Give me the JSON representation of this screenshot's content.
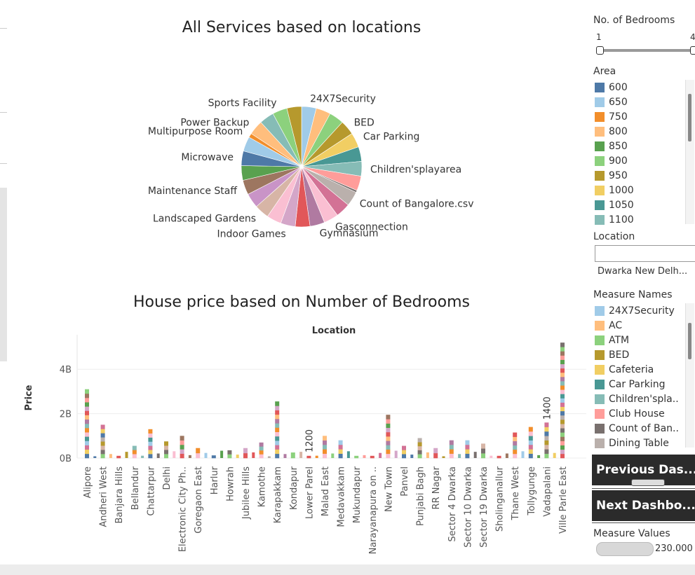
{
  "pie_chart": {
    "title": "All Services based on locations"
  },
  "bar_chart": {
    "title": "House price based on Number of Bedrooms",
    "column_header": "Location",
    "ylabel": "Price",
    "yticks": [
      "0B",
      "2B",
      "4B"
    ]
  },
  "chart_data": [
    {
      "type": "pie",
      "title": "All Services based on locations",
      "slices": [
        {
          "label": "24X7Security",
          "value": 4.2,
          "color": "#a0cbe8"
        },
        {
          "label": "",
          "value": 4.2,
          "color": "#ffbe7d"
        },
        {
          "label": "",
          "value": 4.2,
          "color": "#8cd17d"
        },
        {
          "label": "BED",
          "value": 4.2,
          "color": "#b6992d"
        },
        {
          "label": "Car Parking",
          "value": 4.2,
          "color": "#f1ce63"
        },
        {
          "label": "",
          "value": 4.2,
          "color": "#499894"
        },
        {
          "label": "Children'splayarea",
          "value": 4.2,
          "color": "#86bcb6"
        },
        {
          "label": "",
          "value": 4.2,
          "color": "#ff9d9a"
        },
        {
          "label": "",
          "value": 0.6,
          "color": "#79706e"
        },
        {
          "label": "Count of Bangalore.csv",
          "value": 4.2,
          "color": "#bab0ac"
        },
        {
          "label": "",
          "value": 4.2,
          "color": "#d37295"
        },
        {
          "label": "Gasconnection",
          "value": 4.2,
          "color": "#fabfd2"
        },
        {
          "label": "Gymnasium",
          "value": 4.2,
          "color": "#b07aa1"
        },
        {
          "label": "",
          "value": 4.2,
          "color": "#e15759"
        },
        {
          "label": "Indoor Games",
          "value": 4.2,
          "color": "#d4a6c8"
        },
        {
          "label": "",
          "value": 4.2,
          "color": "#fabfd2"
        },
        {
          "label": "Landscaped Gardens",
          "value": 4.2,
          "color": "#d7b5a6"
        },
        {
          "label": "",
          "value": 4.2,
          "color": "#c994c7"
        },
        {
          "label": "Maintenance Staff",
          "value": 4.2,
          "color": "#9d7660"
        },
        {
          "label": "",
          "value": 4.2,
          "color": "#59a14f"
        },
        {
          "label": "Microwave",
          "value": 4.2,
          "color": "#4e79a7"
        },
        {
          "label": "",
          "value": 4.2,
          "color": "#a0cbe8"
        },
        {
          "label": "Multipurpose Room",
          "value": 1.2,
          "color": "#f28e2b"
        },
        {
          "label": "Power Backup",
          "value": 4.2,
          "color": "#ffbe7d"
        },
        {
          "label": "",
          "value": 4.2,
          "color": "#86bcb6"
        },
        {
          "label": "Sports Facility",
          "value": 4.2,
          "color": "#8cd17d"
        },
        {
          "label": "",
          "value": 4.2,
          "color": "#b6992d"
        }
      ]
    },
    {
      "type": "bar",
      "title": "House price based on Number of Bedrooms",
      "xlabel": "Location",
      "ylabel": "Price",
      "ylim": [
        0,
        5.3
      ],
      "yticks": [
        0,
        2,
        4
      ],
      "tick_categories": [
        "Alipore",
        "Andheri West",
        "Banjara Hills",
        "Bellandur",
        "Chattarpur",
        "Delhi",
        "Electronic City Ph..",
        "Goregaon East",
        "Harlur",
        "Howrah",
        "Jubilee Hills",
        "Kamothe",
        "Karapakkam",
        "Kondapur",
        "Lower Parel",
        "Malad East",
        "Medavakkam",
        "Mukundapur",
        "Narayanapura on ..",
        "New Town",
        "Panvel",
        "Punjabi Bagh",
        "RR Nagar",
        "Sector 4 Dwarka",
        "Sector 10 Dwarka",
        "Sector 19 Dwarka",
        "Sholinganallur",
        "Thane West",
        "Tollygunge",
        "Vadapalani",
        "Ville Parle East"
      ],
      "bars": [
        {
          "location": "Alipore",
          "value": 3.1
        },
        {
          "location": "Andheri West",
          "value": 1.5
        },
        {
          "location": "Banjara Hills",
          "value": 0.1
        },
        {
          "location": "Bellandur",
          "value": 0.55
        },
        {
          "location": "Chattarpur",
          "value": 1.3
        },
        {
          "location": "Delhi",
          "value": 0.75
        },
        {
          "location": "Electronic City Ph..",
          "value": 1.0
        },
        {
          "location": "Goregaon East",
          "value": 0.45
        },
        {
          "location": "Harlur",
          "value": 0.12
        },
        {
          "location": "Howrah",
          "value": 0.35
        },
        {
          "location": "Jubilee Hills",
          "value": 0.45
        },
        {
          "location": "Kamothe",
          "value": 0.7
        },
        {
          "location": "Karapakkam",
          "value": 2.55
        },
        {
          "location": "Kondapur",
          "value": 0.25
        },
        {
          "location": "Lower Parel",
          "value": 0.1
        },
        {
          "location": "Malad East",
          "value": 1.0
        },
        {
          "location": "Medavakkam",
          "value": 0.8
        },
        {
          "location": "Mukundapur",
          "value": 0.1
        },
        {
          "location": "Narayanapura on ..",
          "value": 0.1
        },
        {
          "location": "New Town",
          "value": 1.95
        },
        {
          "location": "Panvel",
          "value": 0.55
        },
        {
          "location": "Punjabi Bagh",
          "value": 0.9
        },
        {
          "location": "RR Nagar",
          "value": 0.45
        },
        {
          "location": "Sector 4 Dwarka",
          "value": 0.8
        },
        {
          "location": "Sector 10 Dwarka",
          "value": 0.8
        },
        {
          "location": "Sector 19 Dwarka",
          "value": 0.65
        },
        {
          "location": "Sholinganallur",
          "value": 0.1
        },
        {
          "location": "Thane West",
          "value": 1.15
        },
        {
          "location": "Tollygunge",
          "value": 1.4
        },
        {
          "location": "Vadapalani",
          "value": 1.6
        },
        {
          "location": "Ville Parle East",
          "value": 5.2
        }
      ],
      "annotations": [
        {
          "text": "1200",
          "location": "Lower Parel"
        },
        {
          "text": "1400",
          "location": "Vadapalani"
        }
      ]
    }
  ],
  "sidebar": {
    "bedrooms": {
      "title": "No. of Bedrooms",
      "min_label": "1",
      "max_label": "4",
      "low": 1,
      "high": 4
    },
    "area": {
      "title": "Area",
      "items": [
        {
          "label": "600",
          "color": "#4e79a7"
        },
        {
          "label": "650",
          "color": "#a0cbe8"
        },
        {
          "label": "750",
          "color": "#f28e2b"
        },
        {
          "label": "800",
          "color": "#ffbe7d"
        },
        {
          "label": "850",
          "color": "#59a14f"
        },
        {
          "label": "900",
          "color": "#8cd17d"
        },
        {
          "label": "950",
          "color": "#b6992d"
        },
        {
          "label": "1000",
          "color": "#f1ce63"
        },
        {
          "label": "1050",
          "color": "#499894"
        },
        {
          "label": "1100",
          "color": "#86bcb6"
        }
      ]
    },
    "location": {
      "title": "Location",
      "value": "Dwarka New Delh..."
    },
    "measure_names": {
      "title": "Measure Names",
      "items": [
        {
          "label": "24X7Security",
          "color": "#a0cbe8"
        },
        {
          "label": "AC",
          "color": "#ffbe7d"
        },
        {
          "label": "ATM",
          "color": "#8cd17d"
        },
        {
          "label": "BED",
          "color": "#b6992d"
        },
        {
          "label": "Cafeteria",
          "color": "#f1ce63"
        },
        {
          "label": "Car Parking",
          "color": "#499894"
        },
        {
          "label": "Children'spla..",
          "color": "#86bcb6"
        },
        {
          "label": "Club House",
          "color": "#ff9d9a"
        },
        {
          "label": "Count of Ban..",
          "color": "#79706e"
        },
        {
          "label": "Dining Table",
          "color": "#bab0ac"
        }
      ]
    },
    "prev_button": "Previous Das...",
    "next_button": "Next Dashbo...",
    "measure_values": {
      "title": "Measure Values",
      "value": "230.000"
    }
  }
}
